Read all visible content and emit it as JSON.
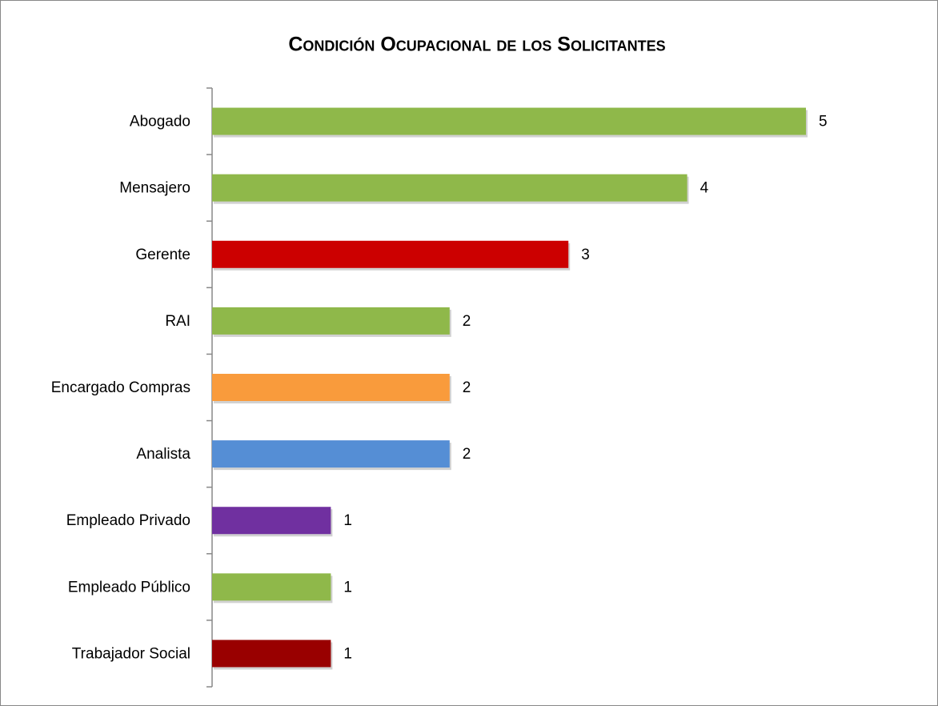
{
  "chart_data": {
    "type": "barh",
    "title": "Condición Ocupacional de los Solicitantes",
    "categories": [
      "Abogado",
      "Mensajero",
      "Gerente",
      "RAI",
      "Encargado Compras",
      "Analista",
      "Empleado Privado",
      "Empleado Público",
      "Trabajador Social"
    ],
    "values": [
      5,
      4,
      3,
      2,
      2,
      2,
      1,
      1,
      1
    ],
    "colors": [
      "#8fb84a",
      "#8fb84a",
      "#cc0000",
      "#8fb84a",
      "#f99b3c",
      "#558ed5",
      "#7030a0",
      "#8fb84a",
      "#990000"
    ]
  }
}
